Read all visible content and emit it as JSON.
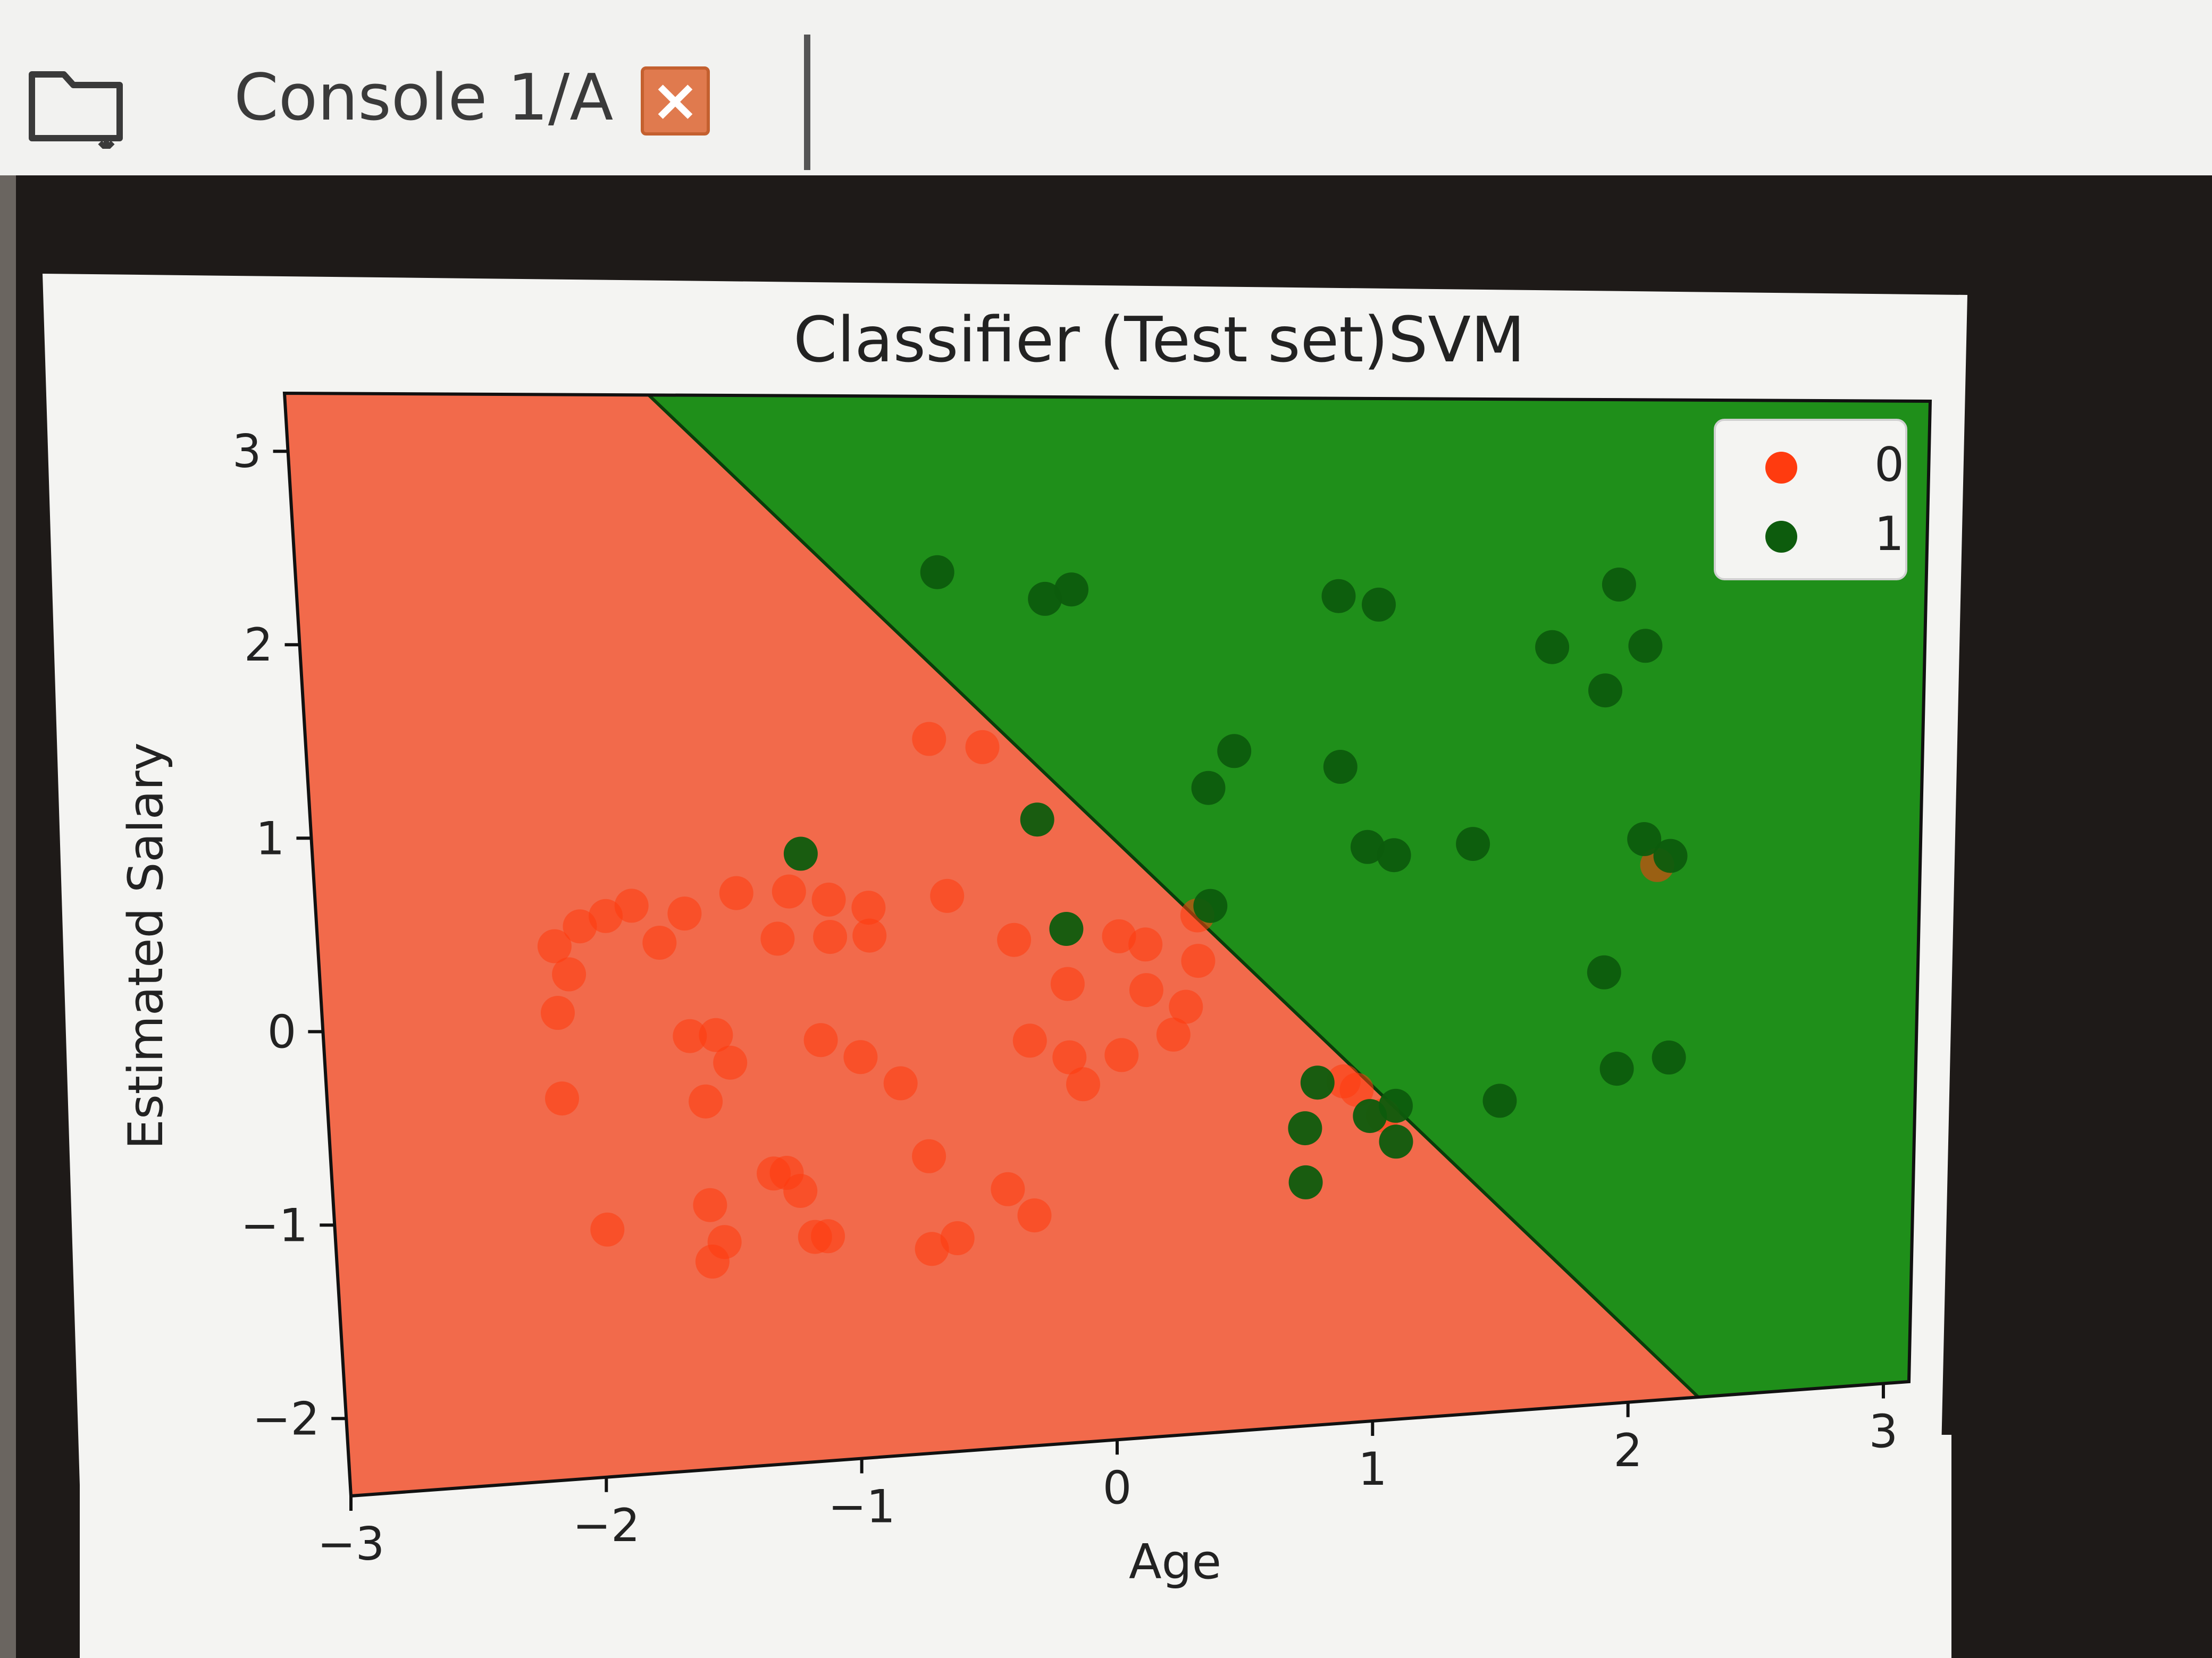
{
  "tab": {
    "label": "Console 1/A",
    "close_icon": "close-icon",
    "folder_icon": "folder-icon",
    "close_color": "#e07a4e"
  },
  "chart_data": {
    "type": "scatter",
    "title": "Classifier (Test set)SVM",
    "xlabel": "Age",
    "ylabel": "Estimated Salary",
    "xlim": [
      -3,
      3.1
    ],
    "ylim": [
      -2.4,
      3.3
    ],
    "xticks": [
      -3,
      -2,
      -1,
      0,
      1,
      2,
      3
    ],
    "yticks": [
      -2,
      -1,
      0,
      1,
      2,
      3
    ],
    "xtick_labels": [
      "−3",
      "−2",
      "−1",
      "0",
      "1",
      "2",
      "3"
    ],
    "ytick_labels": [
      "−2",
      "−1",
      "0",
      "1",
      "2",
      "3"
    ],
    "grid": false,
    "legend_position": "top-right",
    "decision_boundary": {
      "x": [
        -1.65,
        2.0
      ],
      "y": [
        3.3,
        -2.0
      ]
    },
    "regions": [
      {
        "label": "0",
        "color": "#f26a4b"
      },
      {
        "label": "1",
        "color": "#1f8f1a"
      }
    ],
    "series": [
      {
        "name": "0",
        "color": "#ff3b0f",
        "x": [
          -0.65,
          -0.45,
          -1.2,
          -1.05,
          -0.9,
          -1.05,
          -0.6,
          -1.4,
          -1.6,
          -1.8,
          -1.9,
          -2.0,
          -2.1,
          -2.05,
          -1.7,
          -1.25,
          -0.9,
          -0.35,
          -0.15,
          0.05,
          0.15,
          0.35,
          0.3,
          0.15,
          -2.1,
          -2.1,
          -1.6,
          -1.5,
          -1.45,
          -1.1,
          -0.95,
          -0.8,
          -0.3,
          -0.15,
          -0.1,
          0.05,
          0.25,
          -1.55,
          -1.55,
          -1.3,
          -1.25,
          -1.2,
          -1.15,
          -0.7,
          -0.4,
          -0.3,
          -1.5,
          -1.55,
          -1.95,
          -0.7,
          -0.6,
          -1.1,
          0.35,
          0.9,
          0.95,
          1.05,
          2.1
        ],
        "y": [
          1.45,
          1.4,
          0.65,
          0.6,
          0.55,
          0.4,
          0.6,
          0.65,
          0.55,
          0.6,
          0.55,
          0.5,
          0.4,
          0.25,
          0.4,
          0.4,
          0.4,
          0.35,
          0.1,
          0.35,
          0.3,
          0.2,
          -0.05,
          0.05,
          0.05,
          -0.4,
          -0.1,
          -0.1,
          -0.25,
          -0.15,
          -0.25,
          -0.4,
          -0.2,
          -0.3,
          -0.45,
          -0.3,
          -0.2,
          -0.45,
          -1.0,
          -0.85,
          -0.85,
          -0.95,
          -1.2,
          -0.8,
          -1.0,
          -1.15,
          -1.2,
          -1.3,
          -1.1,
          -1.3,
          -1.25,
          -1.2,
          0.45,
          -0.5,
          -0.55,
          -0.7,
          0.65
        ]
      },
      {
        "name": "1",
        "color": "#0d5c0d",
        "x": [
          -0.6,
          -0.2,
          -0.1,
          0.9,
          1.05,
          1.95,
          1.7,
          2.05,
          1.9,
          0.5,
          0.4,
          0.9,
          1.0,
          1.1,
          1.4,
          2.05,
          2.15,
          -1.15,
          -0.25,
          -0.15,
          0.4,
          1.9,
          2.15,
          1.95,
          0.8,
          1.1,
          1.0,
          1.5,
          0.75,
          0.75,
          1.1
        ],
        "y": [
          2.35,
          2.2,
          2.25,
          2.2,
          2.15,
          2.25,
          1.9,
          1.9,
          1.65,
          1.35,
          1.15,
          1.25,
          0.8,
          0.75,
          0.8,
          0.8,
          0.7,
          0.85,
          1.0,
          0.4,
          0.5,
          0.05,
          -0.45,
          -0.5,
          -0.5,
          -0.65,
          -0.7,
          -0.65,
          -0.75,
          -1.05,
          -0.85
        ]
      }
    ]
  }
}
